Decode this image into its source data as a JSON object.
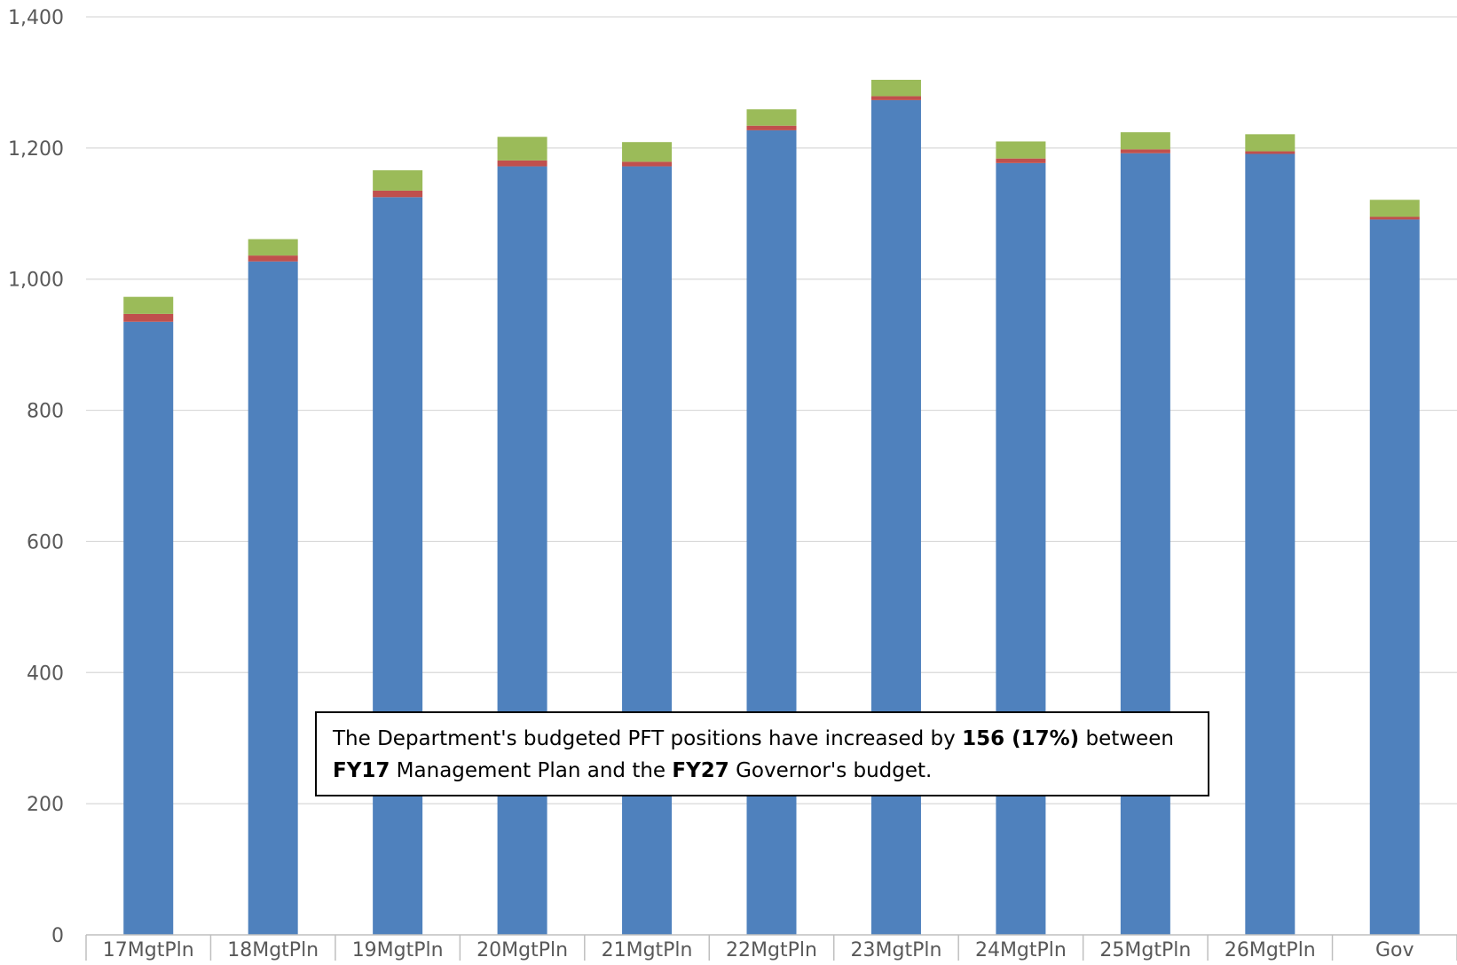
{
  "colors": {
    "series_1": "#4f81bd",
    "series_2": "#c0504d",
    "series_3": "#9bbb59",
    "grid": "#d9d9d9",
    "axis_text": "#595959",
    "axis_line": "#bfbfbf"
  },
  "chart_data": {
    "type": "bar",
    "stacked": true,
    "title": "",
    "xlabel": "",
    "ylabel": "",
    "ylim": [
      0,
      1400
    ],
    "yticks": [
      0,
      200,
      400,
      600,
      800,
      1000,
      1200,
      1400
    ],
    "ytick_labels": [
      "0",
      "200",
      "400",
      "600",
      "800",
      "1,000",
      "1,200",
      "1,400"
    ],
    "grid": true,
    "legend": "none",
    "categories": [
      "17MgtPln",
      "18MgtPln",
      "19MgtPln",
      "20MgtPln",
      "21MgtPln",
      "22MgtPln",
      "23MgtPln",
      "24MgtPln",
      "25MgtPln",
      "26MgtPln",
      "Gov"
    ],
    "series": [
      {
        "values": [
          935,
          1027,
          1125,
          1172,
          1172,
          1227,
          1273,
          1177,
          1192,
          1191,
          1091
        ],
        "color": "#4f81bd"
      },
      {
        "values": [
          12,
          9,
          10,
          9,
          7,
          7,
          6,
          7,
          6,
          4,
          4
        ],
        "color": "#c0504d"
      },
      {
        "values": [
          26,
          25,
          31,
          36,
          30,
          25,
          25,
          26,
          26,
          26,
          26
        ],
        "color": "#9bbb59"
      }
    ]
  },
  "annotation": {
    "t1": "The Department's budgeted PFT positions have increased by ",
    "b1": "156 (17%)",
    "t2": " between ",
    "b2": "FY17",
    "t3": " Management Plan and the ",
    "b3": "FY27",
    "t4": " Governor's budget."
  }
}
